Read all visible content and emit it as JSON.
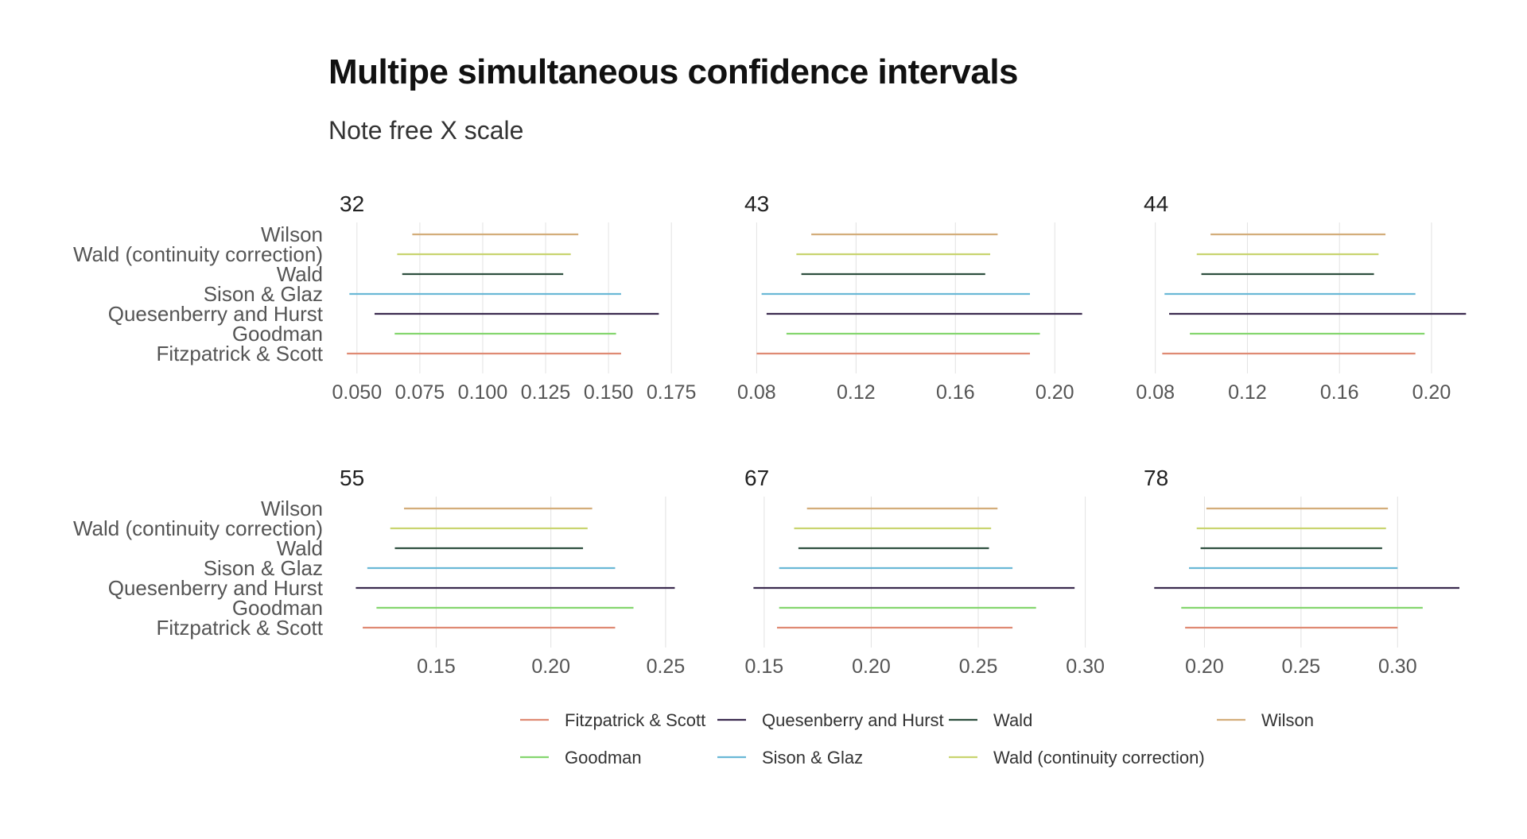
{
  "chart_data": {
    "type": "interval",
    "title": "Multipe simultaneous confidence intervals",
    "subtitle": "Note free X scale",
    "methods": [
      "Wilson",
      "Wald (continuity correction)",
      "Wald",
      "Sison & Glaz",
      "Quesenberry and Hurst",
      "Goodman",
      "Fitzpatrick & Scott"
    ],
    "colors": {
      "Fitzpatrick & Scott": "#DF8A73",
      "Quesenberry and Hurst": "#3B2B4F",
      "Wald": "#2E4F3F",
      "Wilson": "#D3AD7A",
      "Goodman": "#85D66F",
      "Sison & Glaz": "#6AB8D6",
      "Wald (continuity correction)": "#C9D46F"
    },
    "legend": {
      "position": "bottom",
      "items": [
        "Fitzpatrick & Scott",
        "Quesenberry and Hurst",
        "Wald",
        "Wilson",
        "Goodman",
        "Sison & Glaz",
        "Wald (continuity correction)"
      ]
    },
    "grid": true,
    "panels": [
      {
        "label": "32",
        "ticks": [
          0.05,
          0.075,
          0.1,
          0.125,
          0.15,
          0.175
        ],
        "tick_labels": [
          "0.050",
          "0.075",
          "0.100",
          "0.125",
          "0.150",
          "0.175"
        ],
        "xlim": [
          0.045,
          0.18
        ],
        "intervals": [
          {
            "method": "Wilson",
            "lower": 0.072,
            "upper": 0.138
          },
          {
            "method": "Wald (continuity correction)",
            "lower": 0.066,
            "upper": 0.135
          },
          {
            "method": "Wald",
            "lower": 0.068,
            "upper": 0.132
          },
          {
            "method": "Sison & Glaz",
            "lower": 0.047,
            "upper": 0.155
          },
          {
            "method": "Quesenberry and Hurst",
            "lower": 0.057,
            "upper": 0.17
          },
          {
            "method": "Goodman",
            "lower": 0.065,
            "upper": 0.153
          },
          {
            "method": "Fitzpatrick & Scott",
            "lower": 0.046,
            "upper": 0.155
          }
        ]
      },
      {
        "label": "43",
        "ticks": [
          0.08,
          0.12,
          0.16,
          0.2
        ],
        "tick_labels": [
          "0.08",
          "0.12",
          "0.16",
          "0.20"
        ],
        "xlim": [
          0.077,
          0.214
        ],
        "intervals": [
          {
            "method": "Wilson",
            "lower": 0.102,
            "upper": 0.177
          },
          {
            "method": "Wald (continuity correction)",
            "lower": 0.096,
            "upper": 0.174
          },
          {
            "method": "Wald",
            "lower": 0.098,
            "upper": 0.172
          },
          {
            "method": "Sison & Glaz",
            "lower": 0.082,
            "upper": 0.19
          },
          {
            "method": "Quesenberry and Hurst",
            "lower": 0.084,
            "upper": 0.211
          },
          {
            "method": "Goodman",
            "lower": 0.092,
            "upper": 0.194
          },
          {
            "method": "Fitzpatrick & Scott",
            "lower": 0.08,
            "upper": 0.19
          }
        ]
      },
      {
        "label": "44",
        "ticks": [
          0.08,
          0.12,
          0.16,
          0.2
        ],
        "tick_labels": [
          "0.08",
          "0.12",
          "0.16",
          "0.20"
        ],
        "xlim": [
          0.077,
          0.218
        ],
        "intervals": [
          {
            "method": "Wilson",
            "lower": 0.104,
            "upper": 0.18
          },
          {
            "method": "Wald (continuity correction)",
            "lower": 0.098,
            "upper": 0.177
          },
          {
            "method": "Wald",
            "lower": 0.1,
            "upper": 0.175
          },
          {
            "method": "Sison & Glaz",
            "lower": 0.084,
            "upper": 0.193
          },
          {
            "method": "Quesenberry and Hurst",
            "lower": 0.086,
            "upper": 0.215
          },
          {
            "method": "Goodman",
            "lower": 0.095,
            "upper": 0.197
          },
          {
            "method": "Fitzpatrick & Scott",
            "lower": 0.083,
            "upper": 0.193
          }
        ]
      },
      {
        "label": "55",
        "ticks": [
          0.15,
          0.2,
          0.25
        ],
        "tick_labels": [
          "0.15",
          "0.20",
          "0.25"
        ],
        "xlim": [
          0.11,
          0.258
        ],
        "intervals": [
          {
            "method": "Wilson",
            "lower": 0.136,
            "upper": 0.218
          },
          {
            "method": "Wald (continuity correction)",
            "lower": 0.13,
            "upper": 0.216
          },
          {
            "method": "Wald",
            "lower": 0.132,
            "upper": 0.214
          },
          {
            "method": "Sison & Glaz",
            "lower": 0.12,
            "upper": 0.228
          },
          {
            "method": "Quesenberry and Hurst",
            "lower": 0.115,
            "upper": 0.254
          },
          {
            "method": "Goodman",
            "lower": 0.124,
            "upper": 0.236
          },
          {
            "method": "Fitzpatrick & Scott",
            "lower": 0.118,
            "upper": 0.228
          }
        ]
      },
      {
        "label": "67",
        "ticks": [
          0.15,
          0.2,
          0.25,
          0.3
        ],
        "tick_labels": [
          "0.15",
          "0.20",
          "0.25",
          "0.30"
        ],
        "xlim": [
          0.143,
          0.302
        ],
        "intervals": [
          {
            "method": "Wilson",
            "lower": 0.17,
            "upper": 0.259
          },
          {
            "method": "Wald (continuity correction)",
            "lower": 0.164,
            "upper": 0.256
          },
          {
            "method": "Wald",
            "lower": 0.166,
            "upper": 0.255
          },
          {
            "method": "Sison & Glaz",
            "lower": 0.157,
            "upper": 0.266
          },
          {
            "method": "Quesenberry and Hurst",
            "lower": 0.145,
            "upper": 0.295
          },
          {
            "method": "Goodman",
            "lower": 0.157,
            "upper": 0.277
          },
          {
            "method": "Fitzpatrick & Scott",
            "lower": 0.156,
            "upper": 0.266
          }
        ]
      },
      {
        "label": "78",
        "ticks": [
          0.2,
          0.25,
          0.3
        ],
        "tick_labels": [
          "0.20",
          "0.25",
          "0.30"
        ],
        "xlim": [
          0.171,
          0.339
        ],
        "intervals": [
          {
            "method": "Wilson",
            "lower": 0.201,
            "upper": 0.295
          },
          {
            "method": "Wald (continuity correction)",
            "lower": 0.196,
            "upper": 0.294
          },
          {
            "method": "Wald",
            "lower": 0.198,
            "upper": 0.292
          },
          {
            "method": "Sison & Glaz",
            "lower": 0.192,
            "upper": 0.3
          },
          {
            "method": "Quesenberry and Hurst",
            "lower": 0.174,
            "upper": 0.332
          },
          {
            "method": "Goodman",
            "lower": 0.188,
            "upper": 0.313
          },
          {
            "method": "Fitzpatrick & Scott",
            "lower": 0.19,
            "upper": 0.3
          }
        ]
      }
    ]
  }
}
